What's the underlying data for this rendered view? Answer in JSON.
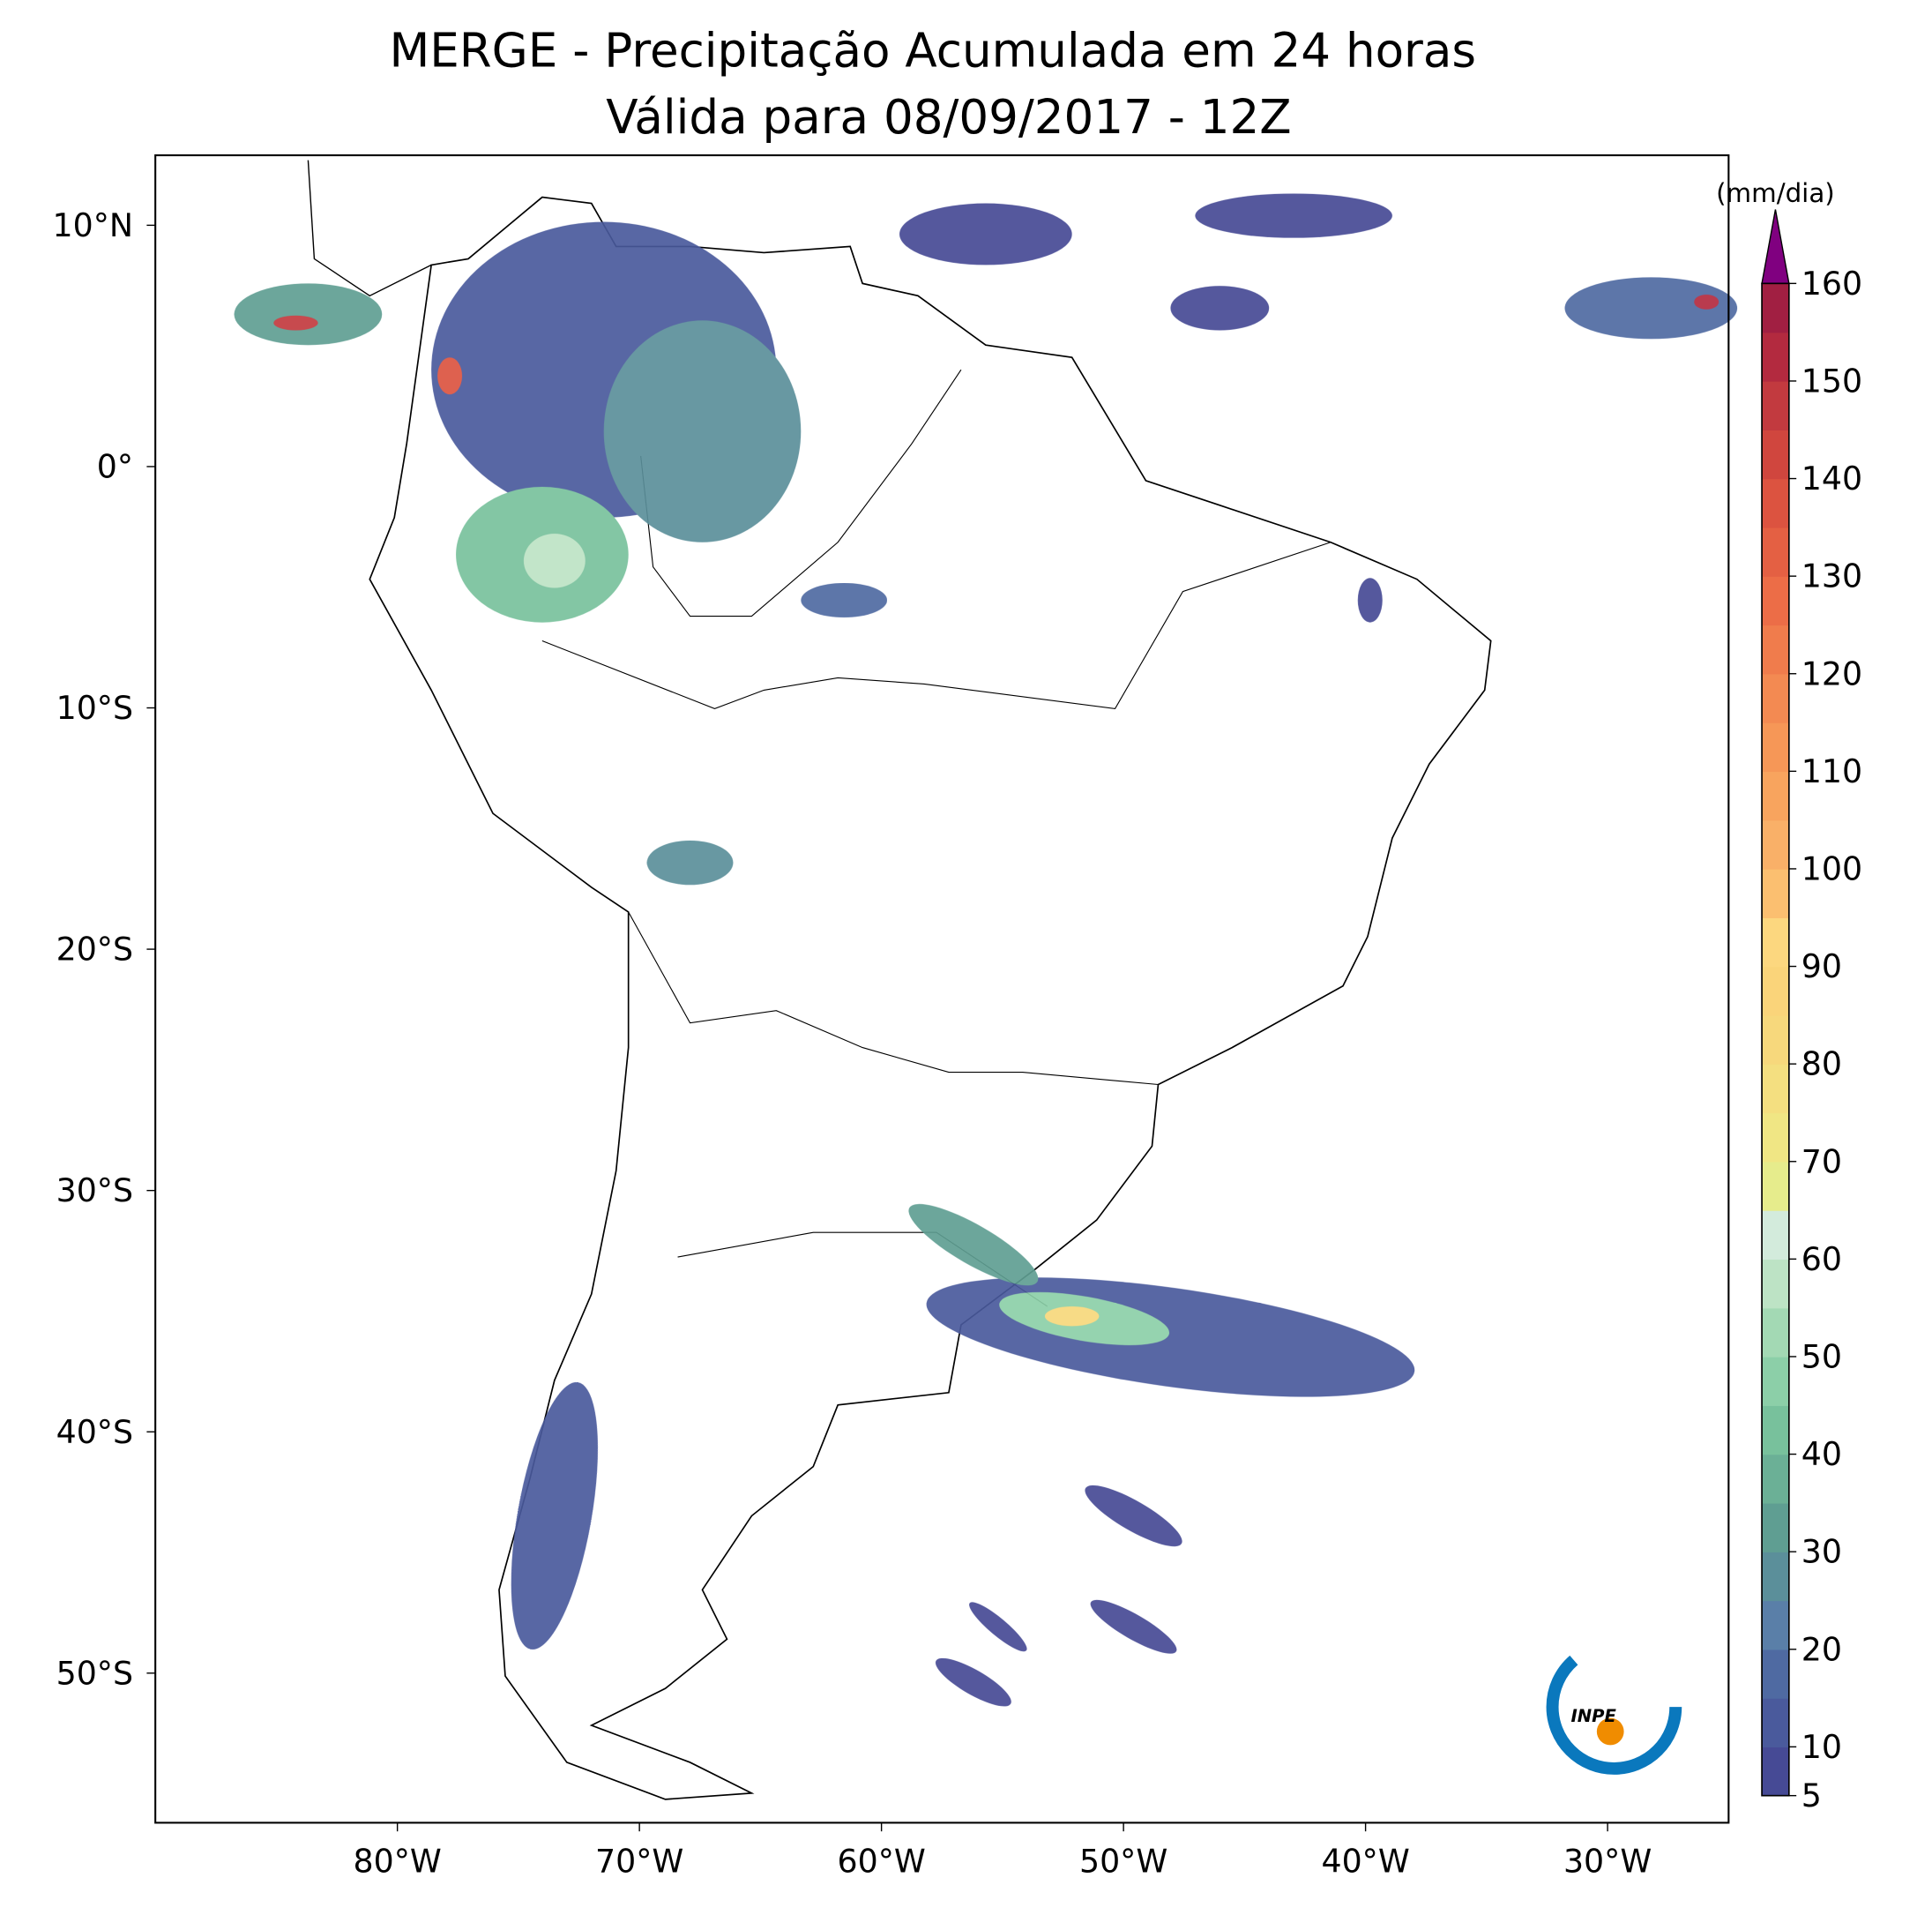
{
  "map": {
    "title": "MERGE - Precipitação Acumulada em 24 horas",
    "subtitle": "Válida para 08/09/2017 - 12Z",
    "xlim": [
      -90,
      -25
    ],
    "ylim": [
      -56.2,
      12.9
    ],
    "xticks": [
      {
        "value": -80,
        "label": "80°W"
      },
      {
        "value": -70,
        "label": "70°W"
      },
      {
        "value": -60,
        "label": "60°W"
      },
      {
        "value": -50,
        "label": "50°W"
      },
      {
        "value": -40,
        "label": "40°W"
      },
      {
        "value": -30,
        "label": "30°W"
      }
    ],
    "yticks": [
      {
        "value": 10,
        "label": "10°N"
      },
      {
        "value": 0,
        "label": "0°"
      },
      {
        "value": -10,
        "label": "10°S"
      },
      {
        "value": -20,
        "label": "20°S"
      },
      {
        "value": -30,
        "label": "30°S"
      },
      {
        "value": -40,
        "label": "40°S"
      },
      {
        "value": -50,
        "label": "50°S"
      }
    ],
    "colorbar": {
      "label": "(mm/dia)",
      "lim": [
        5,
        160
      ],
      "ticks": [
        5,
        10,
        20,
        30,
        40,
        50,
        60,
        70,
        80,
        90,
        100,
        110,
        120,
        130,
        140,
        150,
        160
      ],
      "colors": [
        "#464a95",
        "#4a5a9c",
        "#4f6aa2",
        "#5a7fa8",
        "#5b8f9a",
        "#5f9e92",
        "#6bb096",
        "#78c19c",
        "#8ccfa8",
        "#a3d9b4",
        "#bde3c5",
        "#d3ebdc",
        "#e6ec8c",
        "#f0e684",
        "#f4df80",
        "#f7d87c",
        "#fad47a",
        "#fcd77f",
        "#fbbf70",
        "#f9b068",
        "#f8a45e",
        "#f69757",
        "#f38a52",
        "#f07c4c",
        "#ec6d47",
        "#e46043",
        "#dc5340",
        "#d0463e",
        "#c23a3f",
        "#b32a3f",
        "#a11f42"
      ],
      "over_color": "#800080"
    },
    "logo": "INPE"
  }
}
